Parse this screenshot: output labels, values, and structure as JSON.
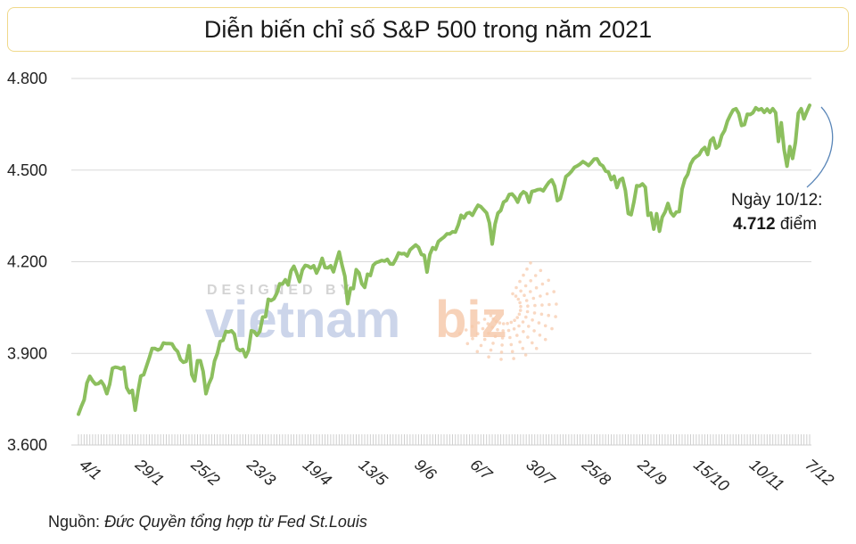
{
  "title": "Diễn biến chỉ số S&P 500 trong năm 2021",
  "annotation": {
    "label": "Ngày 10/12:",
    "value": "4.712",
    "unit": "điểm"
  },
  "source": {
    "label": "Nguồn:",
    "text": "Đức Quyền tổng hợp từ Fed St.Louis"
  },
  "watermark": {
    "top": "DESIGNED BY",
    "brand_main": "vietnam",
    "brand_accent": "biz"
  },
  "colors": {
    "series": "#8cbf5e",
    "watermark_blue": "#bcc7e3",
    "watermark_orange": "#f6c7a8",
    "title_border": "#f0d98a"
  },
  "chart_data": {
    "type": "line",
    "title": "Diễn biến chỉ số S&P 500 trong năm 2021",
    "xlabel": "",
    "ylabel": "",
    "ylim": [
      3600,
      4800
    ],
    "yticks": [
      3600,
      3900,
      4200,
      4500,
      4800
    ],
    "ytick_labels": [
      "3.600",
      "3.900",
      "4.200",
      "4.500",
      "4.800"
    ],
    "xtick_labels": [
      "4/1",
      "29/1",
      "25/2",
      "23/3",
      "19/4",
      "13/5",
      "9/6",
      "6/7",
      "30/7",
      "25/8",
      "21/9",
      "15/10",
      "10/11",
      "7/12"
    ],
    "grid": true,
    "series": [
      {
        "name": "",
        "values": [
          3701,
          3726,
          3748,
          3803,
          3825,
          3810,
          3799,
          3801,
          3809,
          3795,
          3768,
          3799,
          3851,
          3855,
          3853,
          3849,
          3855,
          3788,
          3771,
          3779,
          3714,
          3774,
          3826,
          3830,
          3858,
          3886,
          3916,
          3916,
          3911,
          3915,
          3934,
          3932,
          3932,
          3931,
          3915,
          3906,
          3880,
          3871,
          3874,
          3925,
          3830,
          3810,
          3876,
          3876,
          3841,
          3768,
          3800,
          3821,
          3875,
          3899,
          3939,
          3943,
          3972,
          3970,
          3974,
          3963,
          3916,
          3909,
          3913,
          3889,
          3910,
          3974,
          3971,
          3959,
          3972,
          4019,
          4020,
          4077,
          4073,
          4079,
          4097,
          4128,
          4127,
          4141,
          4124,
          4170,
          4185,
          4163,
          4135,
          4173,
          4188,
          4186,
          4180,
          4187,
          4163,
          4183,
          4211,
          4181,
          4180,
          4187,
          4167,
          4201,
          4232,
          4189,
          4152,
          4063,
          4113,
          4112,
          4174,
          4163,
          4128,
          4116,
          4159,
          4155,
          4188,
          4197,
          4200,
          4204,
          4202,
          4208,
          4193,
          4192,
          4209,
          4229,
          4226,
          4227,
          4219,
          4239,
          4247,
          4255,
          4247,
          4224,
          4221,
          4166,
          4224,
          4246,
          4241,
          4266,
          4274,
          4281,
          4291,
          4291,
          4298,
          4297,
          4320,
          4352,
          4343,
          4358,
          4361,
          4352,
          4370,
          4385,
          4380,
          4370,
          4360,
          4327,
          4258,
          4323,
          4359,
          4368,
          4395,
          4401,
          4420,
          4422,
          4411,
          4395,
          4419,
          4429,
          4423,
          4395,
          4430,
          4432,
          4436,
          4437,
          4432,
          4447,
          4460,
          4468,
          4448,
          4400,
          4406,
          4441,
          4479,
          4486,
          4496,
          4509,
          4514,
          4520,
          4528,
          4522,
          4515,
          4525,
          4536,
          4537,
          4520,
          4514,
          4497,
          4494,
          4469,
          4480,
          4443,
          4468,
          4473,
          4433,
          4358,
          4354,
          4395,
          4449,
          4448,
          4455,
          4444,
          4352,
          4359,
          4307,
          4357,
          4300,
          4346,
          4363,
          4391,
          4361,
          4350,
          4363,
          4364,
          4438,
          4471,
          4486,
          4519,
          4536,
          4544,
          4550,
          4566,
          4574,
          4551,
          4596,
          4605,
          4572,
          4580,
          4614,
          4630,
          4660,
          4680,
          4697,
          4701,
          4685,
          4646,
          4649,
          4683,
          4682,
          4688,
          4704,
          4697,
          4701,
          4689,
          4700,
          4689,
          4701,
          4688,
          4594,
          4655,
          4567,
          4513,
          4577,
          4538,
          4591,
          4686,
          4701,
          4668,
          4691,
          4712
        ]
      }
    ]
  }
}
